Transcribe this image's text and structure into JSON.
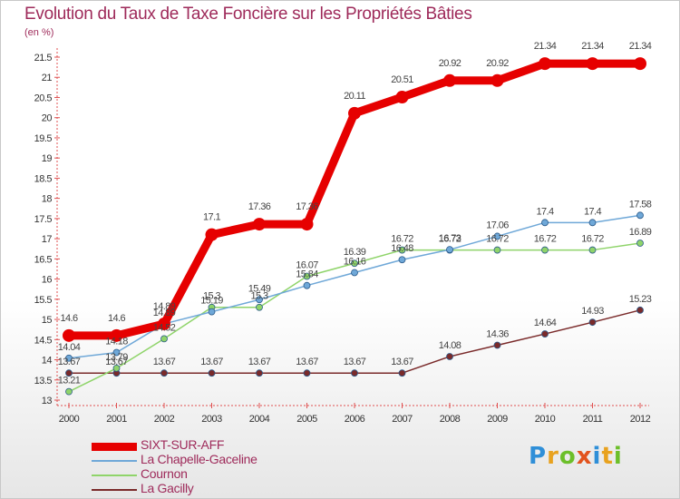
{
  "title": "Evolution du Taux de Taxe Foncière sur les Propriétés Bâties",
  "unit_label": "(en %)",
  "logo": {
    "text": "Proxiti",
    "letters": [
      {
        "ch": "P",
        "color": "#2f8fd8"
      },
      {
        "ch": "r",
        "color": "#e8a21f"
      },
      {
        "ch": "o",
        "color": "#6cbf2a"
      },
      {
        "ch": "x",
        "color": "#e2531e"
      },
      {
        "ch": "i",
        "color": "#2f8fd8"
      },
      {
        "ch": "t",
        "color": "#e8a21f"
      },
      {
        "ch": "i",
        "color": "#6cbf2a"
      }
    ]
  },
  "chart_data": {
    "type": "line",
    "title": "Evolution du Taux de Taxe Foncière sur les Propriétés Bâties",
    "ylabel": "(en %)",
    "xlabel": "",
    "ylim": [
      13,
      21.5
    ],
    "yticks": [
      "13",
      "13.5",
      "14",
      "14.5",
      "15",
      "15.5",
      "16",
      "16.5",
      "17",
      "17.5",
      "18",
      "18.5",
      "19",
      "19.5",
      "20",
      "20.5",
      "21",
      "21.5"
    ],
    "categories": [
      "2000",
      "2001",
      "2002",
      "2003",
      "2004",
      "2005",
      "2006",
      "2007",
      "2008",
      "2009",
      "2010",
      "2011",
      "2012"
    ],
    "grid": false,
    "legend_position": "bottom-left",
    "series": [
      {
        "name": "SIXT-SUR-AFF",
        "color": "#e60000",
        "values": [
          14.6,
          14.6,
          14.89,
          17.1,
          17.36,
          17.36,
          20.11,
          20.51,
          20.92,
          20.92,
          21.34,
          21.34,
          21.34
        ],
        "labels": [
          "14.6",
          "14.6",
          "14.89",
          "17.1",
          "17.36",
          "17.36",
          "20.11",
          "20.51",
          "20.92",
          "20.92",
          "21.34",
          "21.34",
          "21.34"
        ]
      },
      {
        "name": "La Chapelle-Gaceline",
        "color": "#6fa8d8",
        "values": [
          14.04,
          14.18,
          14.89,
          15.19,
          15.49,
          15.84,
          16.16,
          16.48,
          16.73,
          17.06,
          17.4,
          17.4,
          17.58
        ],
        "labels": [
          "14.04",
          "14.18",
          "14.89",
          "15.19",
          "15.49",
          "15.84",
          "16.16",
          "16.48",
          "16.73",
          "17.06",
          "17.4",
          "17.4",
          "17.58"
        ]
      },
      {
        "name": "Cournon",
        "color": "#8fd46a",
        "values": [
          13.21,
          13.79,
          14.52,
          15.3,
          15.3,
          16.07,
          16.39,
          16.72,
          16.72,
          16.72,
          16.72,
          16.72,
          16.89
        ],
        "labels": [
          "13.21",
          "13.79",
          "14.52",
          "15.3",
          "15.3",
          "16.07",
          "16.39",
          "16.72",
          "16.72",
          "16.72",
          "16.72",
          "16.72",
          "16.89"
        ]
      },
      {
        "name": "La Gacilly",
        "color": "#7a2a2a",
        "values": [
          13.67,
          13.67,
          13.67,
          13.67,
          13.67,
          13.67,
          13.67,
          13.67,
          14.08,
          14.36,
          14.64,
          14.93,
          15.23
        ],
        "labels": [
          "13.67",
          "13.67",
          "13.67",
          "13.67",
          "13.67",
          "13.67",
          "13.67",
          "13.67",
          "14.08",
          "14.36",
          "14.64",
          "14.93",
          "15.23"
        ]
      }
    ]
  }
}
